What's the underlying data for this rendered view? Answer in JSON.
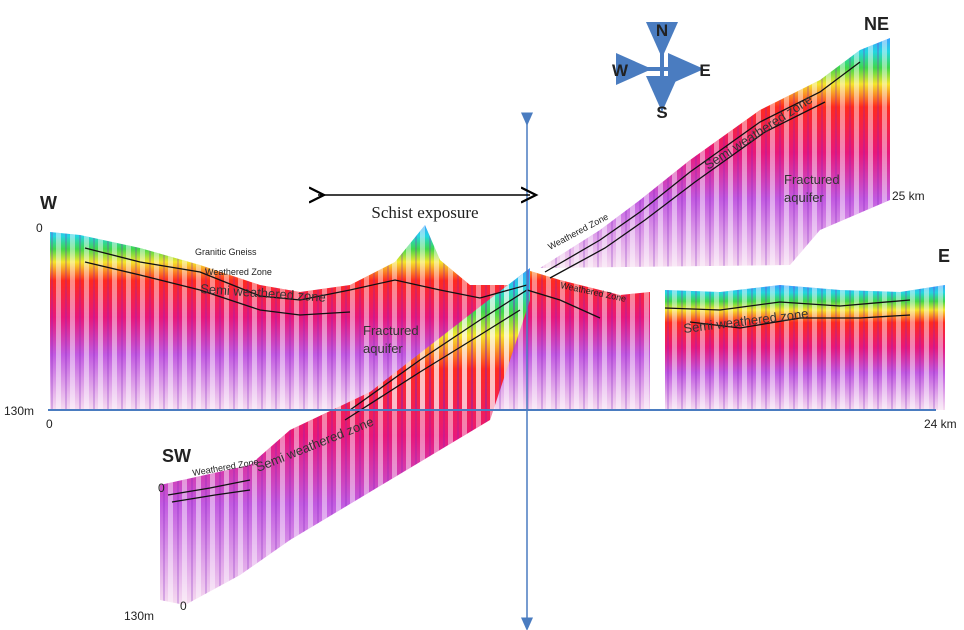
{
  "compass": {
    "n": "N",
    "s": "S",
    "w": "W",
    "e": "E"
  },
  "profiles": {
    "w_e": {
      "start": "W",
      "end": "E",
      "depth_top": "0",
      "depth_bottom": "130m",
      "dist_start": "0",
      "dist_end": "24 km"
    },
    "sw_ne": {
      "start": "SW",
      "end": "NE",
      "depth_top": "0",
      "depth_bottom": "130m",
      "dist_start": "0",
      "dist_end": "25 km"
    }
  },
  "annotations": {
    "schist": "Schist exposure",
    "w_e": {
      "rock": "Granitic Gneiss",
      "weathered": "Weathered Zone",
      "semi": "Semi weathered zone",
      "aquifer": [
        "Fractured",
        "aquifer"
      ],
      "weathered_east": "Weathered Zone",
      "semi_east": "Semi weathered zone"
    },
    "ne": {
      "weathered": "Weathered Zone",
      "semi": "Semi weathered zone",
      "aquifer": [
        "Fractured",
        "aquifer"
      ]
    },
    "sw": {
      "weathered": "Weathered Zone",
      "semi": "Semi weathered zone"
    }
  }
}
